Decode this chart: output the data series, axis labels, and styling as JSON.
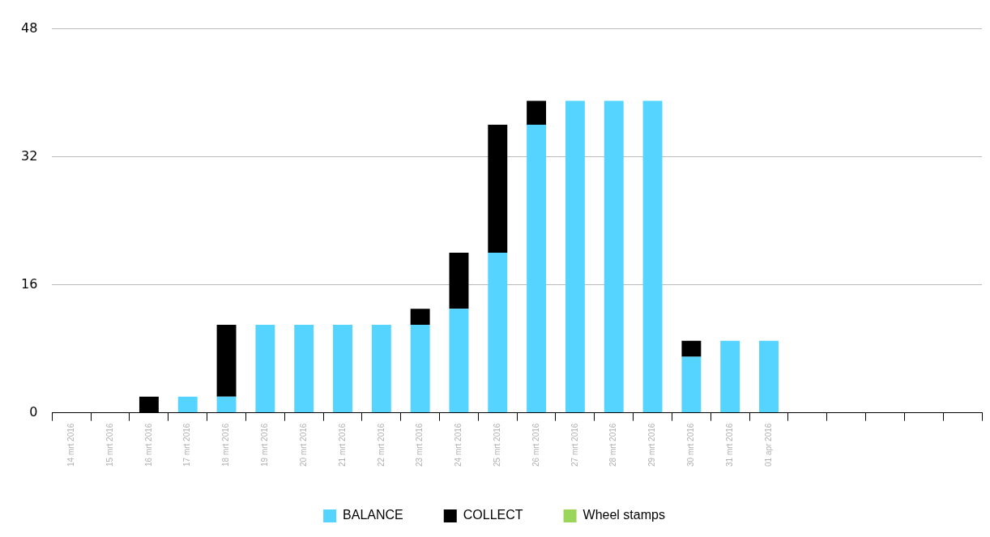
{
  "chart_data": {
    "type": "bar",
    "stacked": true,
    "categories": [
      "14 mrt 2016",
      "15 mrt 2016",
      "16 mrt 2016",
      "17 mrt 2016",
      "18 mrt 2016",
      "19 mrt 2016",
      "20 mrt 2016",
      "21 mrt 2016",
      "22 mrt 2016",
      "23 mrt 2016",
      "24 mrt 2016",
      "25 mrt 2016",
      "26 mrt 2016",
      "27 mrt 2016",
      "28 mrt 2016",
      "29 mrt 2016",
      "30 mrt 2016",
      "31 mrt 2016",
      "01 apr 2016",
      null,
      null,
      null,
      null,
      null
    ],
    "series": [
      {
        "name": "BALANCE",
        "color": "#55d4ff",
        "values": [
          null,
          null,
          null,
          2,
          2,
          11,
          11,
          11,
          11,
          11,
          13,
          20,
          36,
          39,
          39,
          39,
          7,
          9,
          9,
          null,
          null,
          null,
          null,
          null
        ]
      },
      {
        "name": "COLLECT",
        "color": "#000000",
        "values": [
          null,
          null,
          2,
          null,
          9,
          null,
          null,
          null,
          null,
          2,
          7,
          16,
          3,
          null,
          null,
          null,
          2,
          null,
          null,
          null,
          null,
          null,
          null,
          null
        ]
      },
      {
        "name": "Wheel stamps",
        "color": "#99d65a",
        "values": [
          null,
          null,
          null,
          null,
          null,
          null,
          null,
          null,
          null,
          null,
          null,
          null,
          null,
          null,
          null,
          null,
          null,
          null,
          null,
          null,
          null,
          null,
          null,
          null
        ]
      }
    ],
    "ylim": [
      0,
      48
    ],
    "yticks": [
      0,
      16,
      32,
      48
    ],
    "grid": "y",
    "legend": "bottom"
  }
}
